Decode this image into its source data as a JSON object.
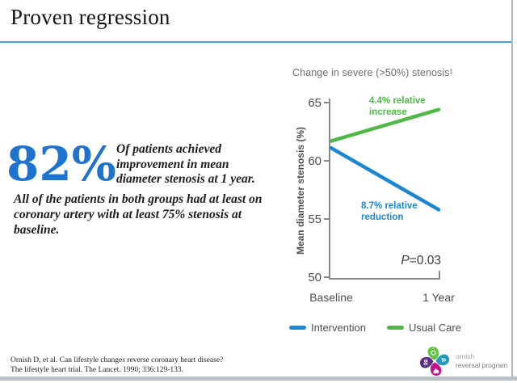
{
  "slide": {
    "title": "Proven regression"
  },
  "stat": {
    "value": "82%",
    "caption": "Of patients achieved improvement in mean diameter stenosis at 1 year.",
    "detail": "All of the patients in both groups had at least on coronary artery with at least 75% stenosis at baseline."
  },
  "chart_data": {
    "type": "line",
    "title": "Change in severe (>50%) stenosis¹",
    "ylabel": "Mean diameter stenosis (%)",
    "x_categories": [
      "Baseline",
      "1 Year"
    ],
    "ylim": [
      50,
      65
    ],
    "yticks": [
      65,
      60,
      55,
      50
    ],
    "grid": false,
    "legend_position": "bottom",
    "series": [
      {
        "name": "Intervention",
        "color": "#1b87d3",
        "values": [
          61.1,
          55.8
        ],
        "annotation": "8.7% relative reduction"
      },
      {
        "name": "Usual Care",
        "color": "#50b848",
        "values": [
          61.7,
          64.4
        ],
        "annotation": "4.4% relative increase"
      }
    ],
    "p_value": {
      "symbol": "P",
      "rest": "=0.03"
    },
    "axis_color": "#87898c",
    "text_color": "#4d4e50"
  },
  "citation": {
    "line1": "Ornish D, et al.  Can lifestyle changes reverse coronary heart disease?",
    "line2": "The lifestyle heart trial.  The Lancet.  1990; 336:129-133."
  },
  "logo": {
    "line1": "ornish",
    "line2": "reversal program",
    "petal_colors": {
      "top": "#64bf46",
      "right": "#2599bd",
      "bottom": "#c6118c",
      "left": "#5b2e85"
    }
  }
}
